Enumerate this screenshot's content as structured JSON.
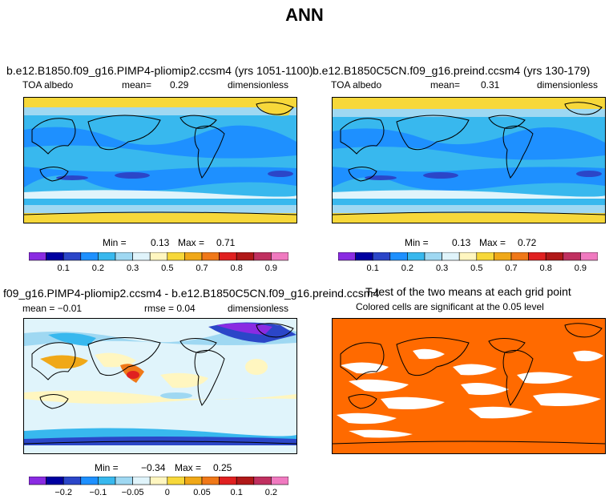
{
  "title": "ANN",
  "panels": [
    {
      "id": "top-left",
      "title": "b.e12.B1850.f09_g16.PIMP4-pliomip2.ccsm4 (yrs 1051-1100)",
      "variable": "TOA albedo",
      "stat_label": "mean=",
      "stat_value": "0.29",
      "units": "dimensionless",
      "min_label": "Min =",
      "min_value": "0.13",
      "max_label": "Max =",
      "max_value": "0.71"
    },
    {
      "id": "top-right",
      "title": "b.e12.B1850C5CN.f09_g16.preind.ccsm4 (yrs 130-179)",
      "variable": "TOA albedo",
      "stat_label": "mean=",
      "stat_value": "0.31",
      "units": "dimensionless",
      "min_label": "Min =",
      "min_value": "0.13",
      "max_label": "Max =",
      "max_value": "0.72"
    },
    {
      "id": "bottom-left",
      "title": "f09_g16.PIMP4-pliomip2.ccsm4 - b.e12.B1850C5CN.f09_g16.preind.ccsm4",
      "stat_label": "mean = −0.01",
      "stat_extra": "rmse = 0.04",
      "units": "dimensionless",
      "min_label": "Min =",
      "min_value": "−0.34",
      "max_label": "Max =",
      "max_value": "0.25"
    },
    {
      "id": "bottom-right",
      "title": "T-test of the two means at each grid point",
      "subtitle": "Colored cells are significant at the 0.05 level"
    }
  ],
  "chart_data": [
    {
      "type": "heatmap",
      "title": "b.e12.B1850.f09_g16.PIMP4-pliomip2.ccsm4 (yrs 1051-1100)",
      "variable": "TOA albedo",
      "units": "dimensionless",
      "mean": 0.29,
      "min": 0.13,
      "max": 0.71,
      "colorbar_ticks": [
        "0.1",
        "0.2",
        "0.3",
        "0.5",
        "0.7",
        "0.8",
        "0.9"
      ],
      "colorbar_colors": [
        "#8a2be2",
        "#0000a0",
        "#2b46c8",
        "#1e90ff",
        "#38b8ee",
        "#9fd8f2",
        "#e0f4fb",
        "#fff6c0",
        "#f7d83a",
        "#f0a818",
        "#f07818",
        "#e02020",
        "#b01818",
        "#c03060",
        "#f07ac0"
      ]
    },
    {
      "type": "heatmap",
      "title": "b.e12.B1850C5CN.f09_g16.preind.ccsm4 (yrs 130-179)",
      "variable": "TOA albedo",
      "units": "dimensionless",
      "mean": 0.31,
      "min": 0.13,
      "max": 0.72,
      "colorbar_ticks": [
        "0.1",
        "0.2",
        "0.3",
        "0.5",
        "0.7",
        "0.8",
        "0.9"
      ],
      "colorbar_colors": [
        "#8a2be2",
        "#0000a0",
        "#2b46c8",
        "#1e90ff",
        "#38b8ee",
        "#9fd8f2",
        "#e0f4fb",
        "#fff6c0",
        "#f7d83a",
        "#f0a818",
        "#f07818",
        "#e02020",
        "#b01818",
        "#c03060",
        "#f07ac0"
      ]
    },
    {
      "type": "heatmap",
      "title": "f09_g16.PIMP4-pliomip2.ccsm4 - b.e12.B1850C5CN.f09_g16.preind.ccsm4",
      "units": "dimensionless",
      "mean": -0.01,
      "rmse": 0.04,
      "min": -0.34,
      "max": 0.25,
      "colorbar_ticks": [
        "−0.2",
        "−0.1",
        "−0.05",
        "0",
        "0.05",
        "0.1",
        "0.2"
      ],
      "colorbar_colors": [
        "#8a2be2",
        "#0000a0",
        "#2b46c8",
        "#1e90ff",
        "#38b8ee",
        "#9fd8f2",
        "#e0f4fb",
        "#fff6c0",
        "#f7d83a",
        "#f0a818",
        "#f07818",
        "#e02020",
        "#b01818",
        "#c03060",
        "#f07ac0"
      ]
    },
    {
      "type": "heatmap",
      "title": "T-test of the two means at each grid point",
      "subtitle": "Colored cells are significant at the 0.05 level",
      "significant_color": "#ff6a00",
      "not_significant_color": "#ffffff"
    }
  ]
}
